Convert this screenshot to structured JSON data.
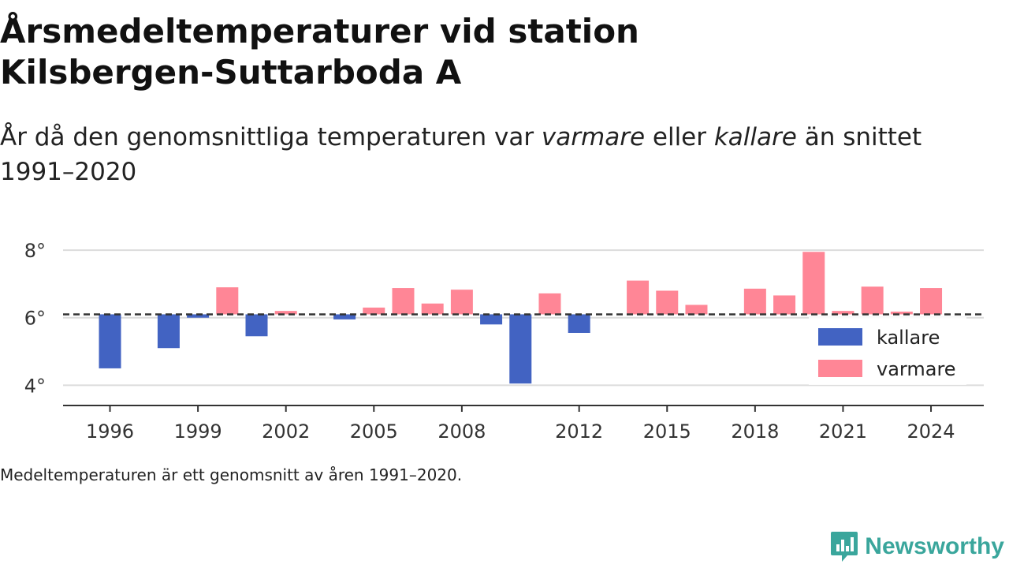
{
  "header": {
    "title": "Årsmedeltemperaturer vid station Kilsbergen-Suttarboda A",
    "subtitle_pre": "År då den genomsnittliga temperaturen var ",
    "subtitle_em1": "varmare",
    "subtitle_mid": " eller ",
    "subtitle_em2": "kallare",
    "subtitle_post": " än snittet 1991–2020"
  },
  "footer": {
    "note": "Medeltemperaturen är ett genomsnitt av åren 1991–2020.",
    "brand": "Newsworthy"
  },
  "colors": {
    "kallare": "#4263c2",
    "varmare": "#ff8696",
    "brand": "#3aa69c",
    "grid": "#dcdcdc",
    "axis": "#333333",
    "baseline": "#333333"
  },
  "chart_data": {
    "type": "bar",
    "baseline": 6.1,
    "ylim": [
      3.4,
      8.4
    ],
    "yticks": [
      {
        "value": 4,
        "label": "4°"
      },
      {
        "value": 6,
        "label": "6°"
      },
      {
        "value": 8,
        "label": "8°"
      }
    ],
    "xlim": [
      1994.4,
      2025.8
    ],
    "xticks": [
      1996,
      1999,
      2002,
      2005,
      2008,
      2012,
      2015,
      2018,
      2021,
      2024
    ],
    "legend": {
      "position": "bottom-right",
      "items": [
        "kallare",
        "varmare"
      ]
    },
    "series": [
      {
        "name": "kallare",
        "x": [
          1996,
          1998,
          1999,
          2001,
          2004,
          2009,
          2010,
          2012
        ],
        "values": [
          4.5,
          5.1,
          6.0,
          5.45,
          5.95,
          5.8,
          4.05,
          5.55
        ]
      },
      {
        "name": "varmare",
        "x": [
          2000,
          2002,
          2005,
          2006,
          2007,
          2008,
          2011,
          2014,
          2015,
          2016,
          2018,
          2019,
          2020,
          2021,
          2022,
          2023,
          2024
        ],
        "values": [
          6.9,
          6.2,
          6.3,
          6.88,
          6.42,
          6.83,
          6.72,
          7.1,
          6.8,
          6.38,
          6.86,
          6.66,
          7.95,
          6.2,
          6.92,
          6.18,
          6.88
        ]
      }
    ]
  }
}
